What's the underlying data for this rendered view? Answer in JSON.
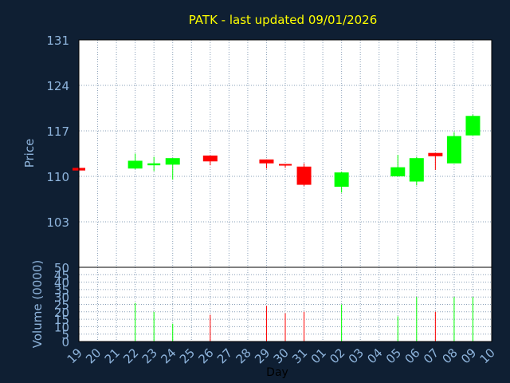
{
  "chart_data": {
    "type": "candlestick",
    "title": "PATK - last updated 09/01/2026",
    "ylabel": "Price",
    "volume_label": "Volume (0000)",
    "xlabel": "Day",
    "ylim": [
      96,
      131
    ],
    "price_ticks": [
      103,
      110,
      117,
      124,
      131
    ],
    "volume_ylim": [
      0,
      50
    ],
    "volume_ticks": [
      0,
      5,
      10,
      15,
      20,
      25,
      30,
      35,
      40,
      45,
      50
    ],
    "x_ticks": [
      "19",
      "20",
      "21",
      "22",
      "23",
      "24",
      "25",
      "26",
      "27",
      "28",
      "29",
      "30",
      "31",
      "01",
      "02",
      "03",
      "04",
      "05",
      "06",
      "07",
      "08",
      "09",
      "10"
    ],
    "grid": true,
    "colors": {
      "background": "#0f1f33",
      "plot": "#ffffff",
      "grid": "#8aa0b8",
      "axis_text": "#8eb4dc",
      "title": "#ffff00",
      "up": "#00ff00",
      "down": "#ff0000",
      "xlabel": "#000000"
    },
    "candles": [
      {
        "day": "19",
        "open": 111.3,
        "high": 111.3,
        "low": 110.9,
        "close": 110.9,
        "volume": 0
      },
      {
        "day": "22",
        "open": 111.2,
        "high": 113.5,
        "low": 111.1,
        "close": 112.4,
        "volume": 26
      },
      {
        "day": "23",
        "open": 111.7,
        "high": 113.0,
        "low": 110.8,
        "close": 112.0,
        "volume": 20
      },
      {
        "day": "24",
        "open": 111.8,
        "high": 112.8,
        "low": 109.5,
        "close": 112.8,
        "volume": 12
      },
      {
        "day": "26",
        "open": 113.2,
        "high": 113.2,
        "low": 111.7,
        "close": 112.3,
        "volume": 18
      },
      {
        "day": "29",
        "open": 112.6,
        "high": 112.6,
        "low": 111.2,
        "close": 112.0,
        "volume": 24
      },
      {
        "day": "30",
        "open": 111.9,
        "high": 111.9,
        "low": 111.3,
        "close": 111.7,
        "volume": 19
      },
      {
        "day": "31",
        "open": 111.5,
        "high": 112.0,
        "low": 108.5,
        "close": 108.7,
        "volume": 20
      },
      {
        "day": "02",
        "open": 108.4,
        "high": 110.7,
        "low": 107.5,
        "close": 110.6,
        "volume": 25
      },
      {
        "day": "05",
        "open": 110.0,
        "high": 113.3,
        "low": 110.0,
        "close": 111.4,
        "volume": 17
      },
      {
        "day": "06",
        "open": 109.2,
        "high": 113.0,
        "low": 108.6,
        "close": 112.8,
        "volume": 30
      },
      {
        "day": "07",
        "open": 113.6,
        "high": 113.6,
        "low": 111.0,
        "close": 113.1,
        "volume": 20
      },
      {
        "day": "08",
        "open": 112.0,
        "high": 116.8,
        "low": 112.0,
        "close": 116.2,
        "volume": 30
      },
      {
        "day": "09",
        "open": 116.3,
        "high": 119.5,
        "low": 116.3,
        "close": 119.3,
        "volume": 30
      }
    ]
  }
}
